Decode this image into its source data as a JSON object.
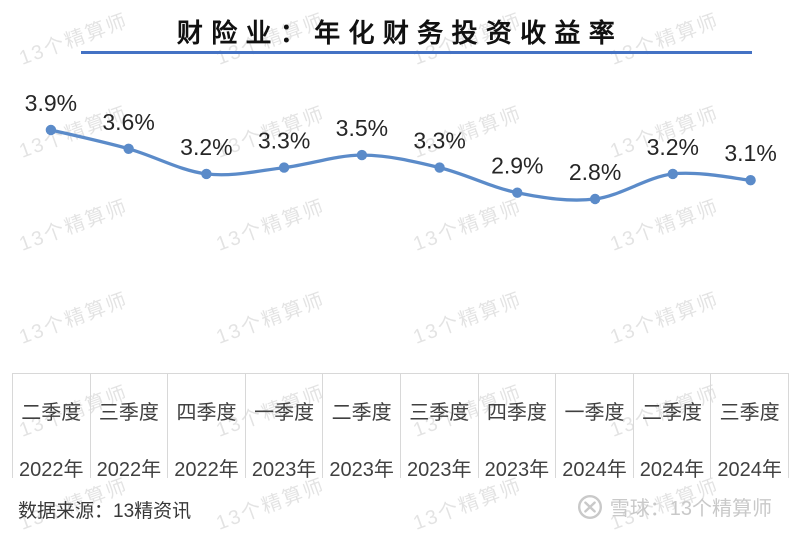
{
  "title": "财险业：年化财务投资收益率",
  "colors": {
    "accent_underline": "#4472C4",
    "series_line": "#5B8BC9",
    "label_text": "#262626",
    "axis_text": "#404040",
    "axis_border": "#d8d8d8"
  },
  "watermark": {
    "text": "13个精算师"
  },
  "chart_data": {
    "type": "line",
    "title": "财险业：年化财务投资收益率",
    "series": [
      {
        "name": "年化财务投资收益率",
        "values": [
          3.9,
          3.6,
          3.2,
          3.3,
          3.5,
          3.3,
          2.9,
          2.8,
          3.2,
          3.1
        ]
      }
    ],
    "point_labels": [
      "3.9%",
      "3.6%",
      "3.2%",
      "3.3%",
      "3.5%",
      "3.3%",
      "2.9%",
      "2.8%",
      "3.2%",
      "3.1%"
    ],
    "categories": [
      {
        "quarter": "二季度",
        "year": "2022年"
      },
      {
        "quarter": "三季度",
        "year": "2022年"
      },
      {
        "quarter": "四季度",
        "year": "2022年"
      },
      {
        "quarter": "一季度",
        "year": "2023年"
      },
      {
        "quarter": "二季度",
        "year": "2023年"
      },
      {
        "quarter": "三季度",
        "year": "2023年"
      },
      {
        "quarter": "四季度",
        "year": "2023年"
      },
      {
        "quarter": "一季度",
        "year": "2024年"
      },
      {
        "quarter": "二季度",
        "year": "2024年"
      },
      {
        "quarter": "三季度",
        "year": "2024年"
      }
    ],
    "ylim": [
      2.6,
      4.0
    ],
    "grid": false,
    "legend": false,
    "smooth": true,
    "markers": true
  },
  "footer": {
    "source": "数据来源：13精资讯",
    "site_credit": "雪球：13个精算师"
  }
}
